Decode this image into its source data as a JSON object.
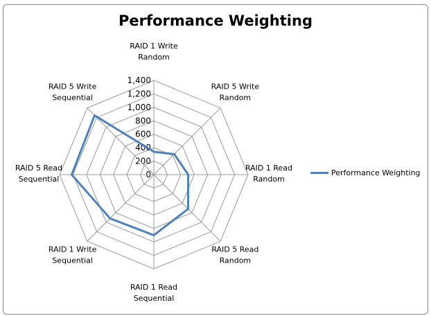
{
  "chart_data": {
    "type": "radar",
    "title": "Performance Weighting",
    "categories": [
      "RAID 1 Write Random",
      "RAID 5 Write Random",
      "RAID 1 Read Random",
      "RAID 5 Read Random",
      "RAID 1 Read Sequential",
      "RAID 1 Write Sequential",
      "RAID 5 Read Sequential",
      "RAID 5 Write Sequential"
    ],
    "category_lines": [
      [
        "RAID 1 Write",
        "Random"
      ],
      [
        "RAID 5 Write",
        "Random"
      ],
      [
        "RAID 1 Read",
        "Random"
      ],
      [
        "RAID 5 Read",
        "Random"
      ],
      [
        "RAID 1 Read",
        "Sequential"
      ],
      [
        "RAID 1 Write",
        "Sequential"
      ],
      [
        "RAID 5 Read",
        "Sequential"
      ],
      [
        "RAID 5 Write",
        "Sequential"
      ]
    ],
    "series": [
      {
        "name": "Performance Weighting",
        "values": [
          340,
          430,
          510,
          720,
          900,
          920,
          1220,
          1245
        ],
        "color": "#4f81bd"
      }
    ],
    "ylim": [
      0,
      1400
    ],
    "ticks": [
      "0",
      "200",
      "400",
      "600",
      "800",
      "1,000",
      "1,200",
      "1,400"
    ],
    "grid": true,
    "legend": "right"
  }
}
